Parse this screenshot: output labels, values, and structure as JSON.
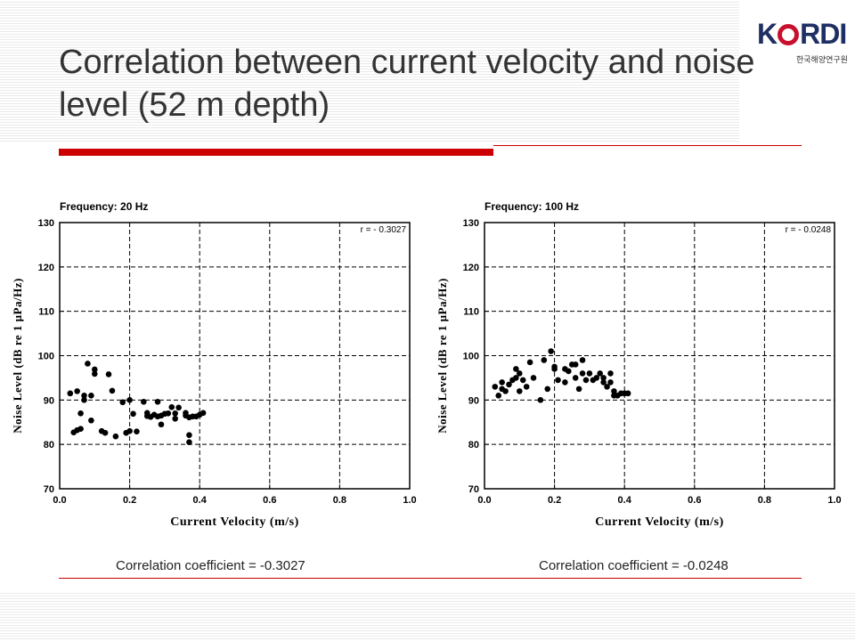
{
  "slide": {
    "title": "Correlation between current velocity and noise level (52 m depth)",
    "logo": {
      "word_left": "K",
      "word_right": "RDI",
      "subtitle": "한국해양연구원"
    },
    "accent_color": "#cc0000"
  },
  "captions": [
    "Correlation coefficient = -0.3027",
    "Correlation coefficient = -0.0248"
  ],
  "chart_data": [
    {
      "type": "scatter",
      "title": "Frequency: 20 Hz",
      "annotation": "r = - 0.3027",
      "xlabel": "Current Velocity (m/s)",
      "ylabel": "Noise Level (dB re 1 μPa/Hz)",
      "xlim": [
        0.0,
        1.0
      ],
      "ylim": [
        70,
        130
      ],
      "xticks": [
        "0.0",
        "0.2",
        "0.4",
        "0.6",
        "0.8",
        "1.0"
      ],
      "yticks": [
        "70",
        "80",
        "90",
        "100",
        "110",
        "120",
        "130"
      ],
      "grid": true,
      "points": [
        [
          0.03,
          91.5
        ],
        [
          0.04,
          82.7
        ],
        [
          0.05,
          92
        ],
        [
          0.05,
          83.2
        ],
        [
          0.06,
          83.5
        ],
        [
          0.06,
          87
        ],
        [
          0.07,
          91
        ],
        [
          0.07,
          90
        ],
        [
          0.08,
          98.2
        ],
        [
          0.09,
          91
        ],
        [
          0.09,
          85.4
        ],
        [
          0.1,
          96.9
        ],
        [
          0.1,
          95.9
        ],
        [
          0.12,
          83
        ],
        [
          0.13,
          82.6
        ],
        [
          0.14,
          95.8
        ],
        [
          0.15,
          92.1
        ],
        [
          0.16,
          81.8
        ],
        [
          0.18,
          89.5
        ],
        [
          0.19,
          82.6
        ],
        [
          0.2,
          90
        ],
        [
          0.21,
          86.9
        ],
        [
          0.2,
          83
        ],
        [
          0.22,
          82.9
        ],
        [
          0.24,
          89.6
        ],
        [
          0.25,
          86.4
        ],
        [
          0.25,
          87.1
        ],
        [
          0.26,
          86.2
        ],
        [
          0.27,
          86.7
        ],
        [
          0.28,
          89.6
        ],
        [
          0.28,
          86.3
        ],
        [
          0.29,
          84.5
        ],
        [
          0.29,
          86.5
        ],
        [
          0.3,
          86.9
        ],
        [
          0.31,
          87
        ],
        [
          0.32,
          88.4
        ],
        [
          0.33,
          87
        ],
        [
          0.33,
          85.8
        ],
        [
          0.34,
          88.3
        ],
        [
          0.36,
          87.1
        ],
        [
          0.36,
          86.5
        ],
        [
          0.37,
          86.1
        ],
        [
          0.37,
          82.1
        ],
        [
          0.37,
          80.5
        ],
        [
          0.38,
          86.3
        ],
        [
          0.39,
          86.3
        ],
        [
          0.4,
          86.7
        ],
        [
          0.41,
          87.1
        ]
      ]
    },
    {
      "type": "scatter",
      "title": "Frequency: 100 Hz",
      "annotation": "r = - 0.0248",
      "xlabel": "Current Velocity (m/s)",
      "ylabel": "Noise Level (dB re 1 μPa/Hz)",
      "xlim": [
        0.0,
        1.0
      ],
      "ylim": [
        70,
        130
      ],
      "xticks": [
        "0.0",
        "0.2",
        "0.4",
        "0.6",
        "0.8",
        "1.0"
      ],
      "yticks": [
        "70",
        "80",
        "90",
        "100",
        "110",
        "120",
        "130"
      ],
      "grid": true,
      "points": [
        [
          0.03,
          93
        ],
        [
          0.04,
          91
        ],
        [
          0.05,
          94
        ],
        [
          0.05,
          92.5
        ],
        [
          0.06,
          92
        ],
        [
          0.07,
          93.5
        ],
        [
          0.08,
          94.5
        ],
        [
          0.09,
          97
        ],
        [
          0.09,
          95
        ],
        [
          0.1,
          92
        ],
        [
          0.1,
          96
        ],
        [
          0.11,
          94.5
        ],
        [
          0.12,
          93
        ],
        [
          0.13,
          98.5
        ],
        [
          0.14,
          95
        ],
        [
          0.16,
          90
        ],
        [
          0.17,
          99
        ],
        [
          0.18,
          92.5
        ],
        [
          0.19,
          101
        ],
        [
          0.2,
          97.5
        ],
        [
          0.2,
          97
        ],
        [
          0.21,
          94.5
        ],
        [
          0.23,
          97
        ],
        [
          0.23,
          94
        ],
        [
          0.24,
          96.5
        ],
        [
          0.25,
          98
        ],
        [
          0.26,
          95
        ],
        [
          0.26,
          98
        ],
        [
          0.27,
          92.5
        ],
        [
          0.28,
          96
        ],
        [
          0.28,
          99
        ],
        [
          0.29,
          94.5
        ],
        [
          0.3,
          96
        ],
        [
          0.31,
          94.5
        ],
        [
          0.32,
          95
        ],
        [
          0.33,
          96
        ],
        [
          0.34,
          95
        ],
        [
          0.34,
          94
        ],
        [
          0.35,
          93
        ],
        [
          0.36,
          96
        ],
        [
          0.36,
          94
        ],
        [
          0.37,
          91
        ],
        [
          0.37,
          92
        ],
        [
          0.38,
          91
        ],
        [
          0.39,
          91.5
        ],
        [
          0.4,
          91.5
        ],
        [
          0.41,
          91.5
        ]
      ]
    }
  ]
}
